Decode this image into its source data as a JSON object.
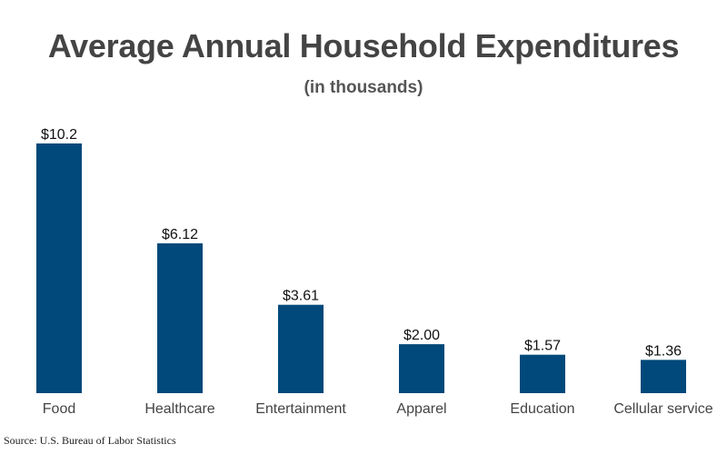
{
  "chart_data": {
    "type": "bar",
    "title": "Average Annual Household Expenditures",
    "subtitle": "(in thousands)",
    "categories": [
      "Food",
      "Healthcare",
      "Entertainment",
      "Apparel",
      "Education",
      "Cellular service"
    ],
    "values": [
      10.2,
      6.12,
      3.61,
      2.0,
      1.57,
      1.36
    ],
    "value_labels": [
      "$10.2",
      "$6.12",
      "$3.61",
      "$2.00",
      "$1.57",
      "$1.36"
    ],
    "ylim": [
      0,
      10.2
    ],
    "grid": false,
    "bar_color": "#00497A"
  },
  "source": "Source: U.S. Bureau of Labor Statistics"
}
